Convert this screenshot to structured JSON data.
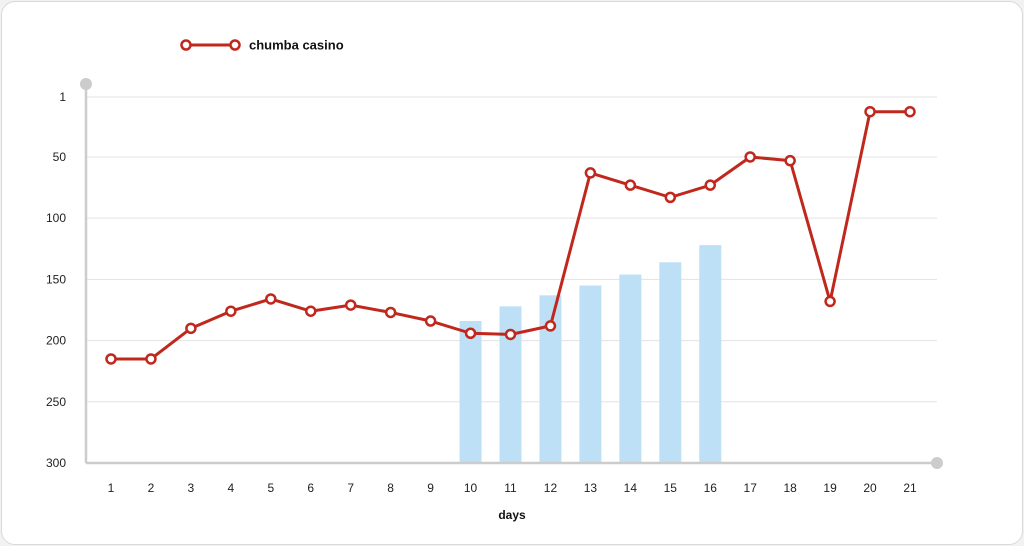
{
  "chart_data": {
    "type": "line",
    "legend": {
      "placement": "top-left",
      "entries": [
        "chumba casino"
      ]
    },
    "xlabel": "days",
    "ylabel": "",
    "y_reversed": true,
    "ylim": [
      1,
      300
    ],
    "yticks": [
      1,
      50,
      100,
      150,
      200,
      250,
      300
    ],
    "grid": "horizontal",
    "categories": [
      "1",
      "2",
      "3",
      "4",
      "5",
      "6",
      "7",
      "8",
      "9",
      "10",
      "11",
      "12",
      "13",
      "14",
      "15",
      "16",
      "17",
      "18",
      "19",
      "20",
      "21"
    ],
    "series": [
      {
        "name": "chumba casino",
        "type": "line",
        "values": [
          215,
          215,
          190,
          176,
          166,
          176,
          171,
          177,
          184,
          194,
          195,
          188,
          63,
          73,
          83,
          73,
          50,
          53,
          168,
          13,
          13
        ]
      },
      {
        "type": "bar",
        "values": [
          null,
          null,
          null,
          null,
          null,
          null,
          null,
          null,
          null,
          184,
          172,
          163,
          155,
          146,
          136,
          122,
          null,
          null,
          null,
          null,
          null
        ]
      }
    ],
    "colors": {
      "line": "#c0281e",
      "bar": "#bee0f6",
      "grid": "#e3e3e3",
      "axis": "#cccccc"
    }
  }
}
